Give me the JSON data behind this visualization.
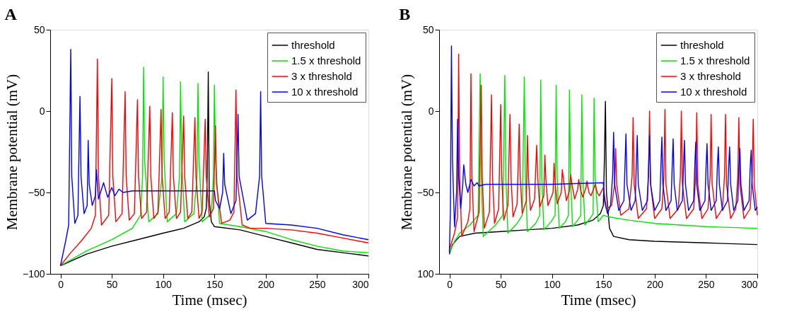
{
  "chart_data": [
    {
      "type": "line",
      "title": "A",
      "xlabel": "Time (msec)",
      "ylabel": "Membrane potential (mV)",
      "xlim": [
        -10,
        300
      ],
      "xticks": [
        0,
        50,
        100,
        150,
        200,
        250,
        300
      ],
      "ylim": [
        -100,
        50
      ],
      "yticks": [
        -100,
        -50,
        0,
        50
      ],
      "grid": false,
      "legend": "top right",
      "series": [
        {
          "name": "threshold",
          "color": "#000000",
          "x": [
            0,
            25,
            50,
            75,
            100,
            120,
            135,
            140,
            142,
            143,
            144,
            145,
            147,
            150,
            175,
            200,
            225,
            250,
            275,
            300
          ],
          "values": [
            -95,
            -88,
            -83,
            -79,
            -75,
            -72,
            -68,
            -65,
            -60,
            -40,
            24,
            -55,
            -68,
            -71,
            -73,
            -77,
            -81,
            -85,
            -87,
            -89
          ]
        },
        {
          "name": "1.5 x threshold",
          "color": "#00e600",
          "x": [
            0,
            25,
            50,
            70,
            78,
            80,
            81,
            82,
            86,
            95,
            99,
            100,
            101,
            104,
            113,
            116,
            117,
            118,
            121,
            130,
            133,
            134,
            135,
            138,
            147,
            149,
            150,
            151,
            155,
            175,
            200,
            225,
            250,
            275,
            300
          ],
          "values": [
            -95,
            -86,
            -79,
            -72,
            -64,
            -40,
            27,
            -30,
            -68,
            -63,
            -40,
            21,
            -30,
            -68,
            -63,
            -40,
            18,
            -30,
            -68,
            -63,
            -40,
            17,
            -30,
            -68,
            -63,
            -40,
            16,
            -30,
            -69,
            -71,
            -74,
            -79,
            -83,
            -86,
            -87
          ]
        },
        {
          "name": "3 x threshold",
          "color": "#ff0000",
          "x": [
            0,
            10,
            20,
            30,
            34,
            36,
            37,
            40,
            47,
            50,
            51,
            54,
            60,
            63,
            64,
            67,
            72,
            75,
            76,
            79,
            84,
            87,
            88,
            91,
            95,
            98,
            99,
            102,
            106,
            109,
            110,
            113,
            117,
            120,
            121,
            124,
            128,
            131,
            132,
            135,
            138,
            141,
            142,
            145,
            149,
            151,
            152,
            157,
            165,
            169,
            171,
            172,
            177,
            185,
            200,
            225,
            250,
            275,
            300
          ],
          "values": [
            -95,
            -87,
            -80,
            -72,
            -64,
            32,
            -40,
            -70,
            -64,
            20,
            -40,
            -68,
            -63,
            12,
            -40,
            -67,
            -63,
            7,
            -40,
            -66,
            -62,
            3,
            -40,
            -66,
            -62,
            1,
            -40,
            -66,
            -62,
            -1,
            -40,
            -66,
            -62,
            -3,
            -40,
            -66,
            -62,
            -4,
            -40,
            -66,
            -62,
            -5,
            -40,
            -65,
            -60,
            -9,
            -45,
            -69,
            -67,
            -62,
            13,
            -40,
            -70,
            -72,
            -72,
            -73,
            -75,
            -78,
            -81
          ]
        },
        {
          "name": "10 x threshold",
          "color": "#0000ff",
          "x": [
            0,
            5,
            8,
            10,
            11,
            14,
            17,
            19,
            20,
            23,
            26,
            27,
            28,
            31,
            34,
            35,
            37,
            42,
            46,
            50,
            53,
            57,
            61,
            70,
            100,
            150,
            151,
            155,
            158,
            159,
            160,
            166,
            171,
            173,
            174,
            182,
            190,
            194,
            195,
            196,
            200,
            225,
            250,
            275,
            300
          ],
          "values": [
            -95,
            -80,
            -70,
            38,
            -40,
            -69,
            -64,
            9,
            -40,
            -63,
            -58,
            -18,
            -45,
            -58,
            -52,
            -36,
            -54,
            -44,
            -53,
            -47,
            -52,
            -48,
            -50,
            -49,
            -49,
            -49,
            -55,
            -60,
            -50,
            -26,
            -45,
            -63,
            -55,
            -2,
            -40,
            -67,
            -63,
            -40,
            12,
            -40,
            -69,
            -70,
            -72,
            -76,
            -79
          ]
        }
      ]
    },
    {
      "type": "line",
      "title": "B",
      "xlabel": "Time (msec)",
      "ylabel": "Membrane potential (mV)",
      "xlim": [
        -10,
        300
      ],
      "xticks": [
        0,
        50,
        100,
        150,
        200,
        250,
        300
      ],
      "ylim": [
        -100,
        50
      ],
      "yticks": [
        {
          "value": -100,
          "label": "100"
        },
        -50,
        0,
        50
      ],
      "grid": false,
      "legend": "top right",
      "series": [
        {
          "name": "threshold",
          "color": "#000000",
          "x": [
            0,
            3,
            10,
            25,
            50,
            75,
            100,
            125,
            140,
            147,
            150,
            151,
            152,
            153,
            156,
            160,
            175,
            200,
            250,
            300
          ],
          "values": [
            -88,
            -82,
            -77,
            -75,
            -74,
            -73,
            -72,
            -70,
            -67,
            -63,
            -58,
            -30,
            6,
            -50,
            -72,
            -77,
            -79,
            -80,
            -81,
            -82
          ]
        },
        {
          "name": "1.5 x threshold",
          "color": "#00e600",
          "x": [
            0,
            5,
            10,
            20,
            28,
            30,
            31,
            33,
            45,
            52,
            54,
            55,
            57,
            66,
            71,
            73,
            74,
            76,
            84,
            88,
            89,
            90,
            92,
            99,
            103,
            104,
            105,
            107,
            113,
            116,
            117,
            118,
            120,
            125,
            128,
            129,
            130,
            132,
            137,
            140,
            141,
            142,
            145,
            150,
            155,
            175,
            200,
            250,
            300
          ],
          "values": [
            -87,
            -80,
            -75,
            -70,
            -64,
            23,
            -40,
            -77,
            -70,
            -64,
            22,
            -40,
            -75,
            -69,
            -64,
            21,
            -40,
            -74,
            -69,
            -64,
            19,
            -40,
            -73,
            -68,
            -64,
            16,
            -40,
            -72,
            -68,
            -64,
            13,
            -40,
            -71,
            -67,
            -64,
            10,
            -40,
            -70,
            -66,
            -63,
            8,
            -40,
            -68,
            -64,
            -65,
            -67,
            -69,
            -71,
            -72
          ]
        },
        {
          "name": "3 x threshold",
          "color": "#ff0000",
          "x": [
            0,
            5,
            8,
            9,
            10,
            12,
            18,
            20,
            21,
            22,
            24,
            29,
            31,
            32,
            34,
            39,
            41,
            42,
            44,
            48,
            50,
            51,
            53,
            57,
            59,
            60,
            62,
            66,
            68,
            69,
            71,
            75,
            76,
            77,
            79,
            83,
            85,
            86,
            88,
            92,
            93,
            94,
            96,
            101,
            102,
            103,
            105,
            109,
            110,
            112,
            114,
            117,
            118,
            120,
            122,
            125,
            126,
            128,
            130,
            133,
            134,
            136,
            138,
            141,
            142,
            144,
            146,
            150,
            153,
            158,
            161,
            162,
            163,
            167,
            175,
            178,
            179,
            180,
            184,
            192,
            194,
            195,
            196,
            200,
            207,
            209,
            210,
            211,
            215,
            223,
            225,
            226,
            227,
            231,
            238,
            240,
            241,
            242,
            246,
            252,
            254,
            255,
            256,
            260,
            266,
            268,
            269,
            270,
            274,
            279,
            281,
            282,
            283,
            287,
            293,
            295,
            296,
            297,
            300
          ],
          "values": [
            -85,
            -75,
            -65,
            35,
            -40,
            -77,
            -68,
            -60,
            23,
            -40,
            -74,
            -62,
            16,
            -40,
            -72,
            -62,
            10,
            -40,
            -69,
            -60,
            4,
            -40,
            -67,
            -58,
            -2,
            -40,
            -65,
            -57,
            -8,
            -40,
            -63,
            -55,
            -15,
            -40,
            -61,
            -54,
            -21,
            -40,
            -59,
            -52,
            -27,
            -42,
            -58,
            -50,
            -32,
            -44,
            -57,
            -50,
            -36,
            -46,
            -55,
            -49,
            -39,
            -47,
            -54,
            -48,
            -42,
            -49,
            -53,
            -47,
            -43,
            -50,
            -52,
            -47,
            -45,
            -50,
            -52,
            -47,
            -60,
            -58,
            -45,
            -23,
            -45,
            -64,
            -60,
            -40,
            -4,
            -45,
            -66,
            -60,
            -40,
            0,
            -45,
            -66,
            -60,
            -40,
            1,
            -45,
            -66,
            -60,
            -40,
            0,
            -45,
            -66,
            -60,
            -40,
            -1,
            -45,
            -66,
            -60,
            -40,
            -2,
            -45,
            -66,
            -60,
            -40,
            -2,
            -45,
            -66,
            -60,
            -40,
            -4,
            -45,
            -66,
            -60,
            -40,
            -5,
            -45,
            -64
          ]
        },
        {
          "name": "10 x threshold",
          "color": "#0000ff",
          "x": [
            0,
            1,
            2,
            3,
            5,
            7,
            8,
            9,
            11,
            13,
            14,
            16,
            18,
            21,
            24,
            27,
            29,
            35,
            100,
            150,
            151,
            154,
            157,
            159,
            160,
            161,
            165,
            170,
            171,
            172,
            173,
            177,
            181,
            182,
            183,
            184,
            188,
            193,
            194,
            195,
            196,
            200,
            205,
            206,
            207,
            208,
            211,
            216,
            217,
            218,
            219,
            222,
            227,
            228,
            229,
            230,
            233,
            238,
            239,
            240,
            241,
            244,
            249,
            250,
            251,
            252,
            255,
            260,
            261,
            262,
            263,
            266,
            271,
            272,
            273,
            274,
            277,
            281,
            282,
            283,
            284,
            287,
            292,
            293,
            294,
            295,
            298,
            300
          ],
          "values": [
            -87,
            -60,
            40,
            -30,
            -71,
            -50,
            -5,
            -40,
            -60,
            -45,
            -33,
            -45,
            -50,
            -42,
            -46,
            -44,
            -46,
            -45,
            -45,
            -44,
            -55,
            -63,
            -58,
            -40,
            -13,
            -45,
            -61,
            -55,
            -35,
            -14,
            -45,
            -61,
            -55,
            -35,
            -15,
            -45,
            -61,
            -55,
            -35,
            -15,
            -45,
            -61,
            -55,
            -35,
            -16,
            -45,
            -61,
            -55,
            -35,
            -17,
            -45,
            -61,
            -55,
            -35,
            -18,
            -45,
            -61,
            -55,
            -35,
            -19,
            -45,
            -61,
            -55,
            -35,
            -20,
            -45,
            -61,
            -55,
            -35,
            -22,
            -45,
            -61,
            -55,
            -35,
            -22,
            -45,
            -61,
            -55,
            -35,
            -23,
            -45,
            -61,
            -55,
            -35,
            -24,
            -45,
            -61,
            -59
          ]
        }
      ]
    }
  ]
}
